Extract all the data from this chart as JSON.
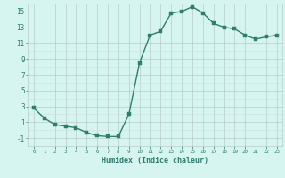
{
  "x": [
    0,
    1,
    2,
    3,
    4,
    5,
    6,
    7,
    8,
    9,
    10,
    11,
    12,
    13,
    14,
    15,
    16,
    17,
    18,
    19,
    20,
    21,
    22,
    23
  ],
  "y": [
    2.8,
    1.5,
    0.7,
    0.5,
    0.3,
    -0.3,
    -0.7,
    -0.8,
    -0.8,
    2.0,
    8.5,
    12.0,
    12.5,
    14.8,
    15.0,
    15.6,
    14.8,
    13.5,
    13.0,
    12.8,
    12.0,
    11.5,
    11.8,
    12.0
  ],
  "line_color": "#2e7d6e",
  "marker_color": "#2e7d6e",
  "bg_color": "#d6f5f0",
  "grid_major_color": "#b8ccc8",
  "grid_minor_color": "#cce0dc",
  "xlabel": "Humidex (Indice chaleur)",
  "ylim": [
    -2,
    16
  ],
  "xlim": [
    -0.5,
    23.5
  ],
  "yticks": [
    -1,
    1,
    3,
    5,
    7,
    9,
    11,
    13,
    15
  ],
  "xtick_labels": [
    "0",
    "1",
    "2",
    "3",
    "4",
    "5",
    "6",
    "7",
    "8",
    "9",
    "10",
    "11",
    "12",
    "13",
    "14",
    "15",
    "16",
    "17",
    "18",
    "19",
    "20",
    "21",
    "22",
    "23"
  ],
  "xlabel_color": "#2e7d6e",
  "tick_color": "#2e7d6e",
  "marker_size": 2.5,
  "line_width": 1.0,
  "ytick_fontsize": 5.5,
  "xtick_fontsize": 4.2,
  "xlabel_fontsize": 6.0
}
